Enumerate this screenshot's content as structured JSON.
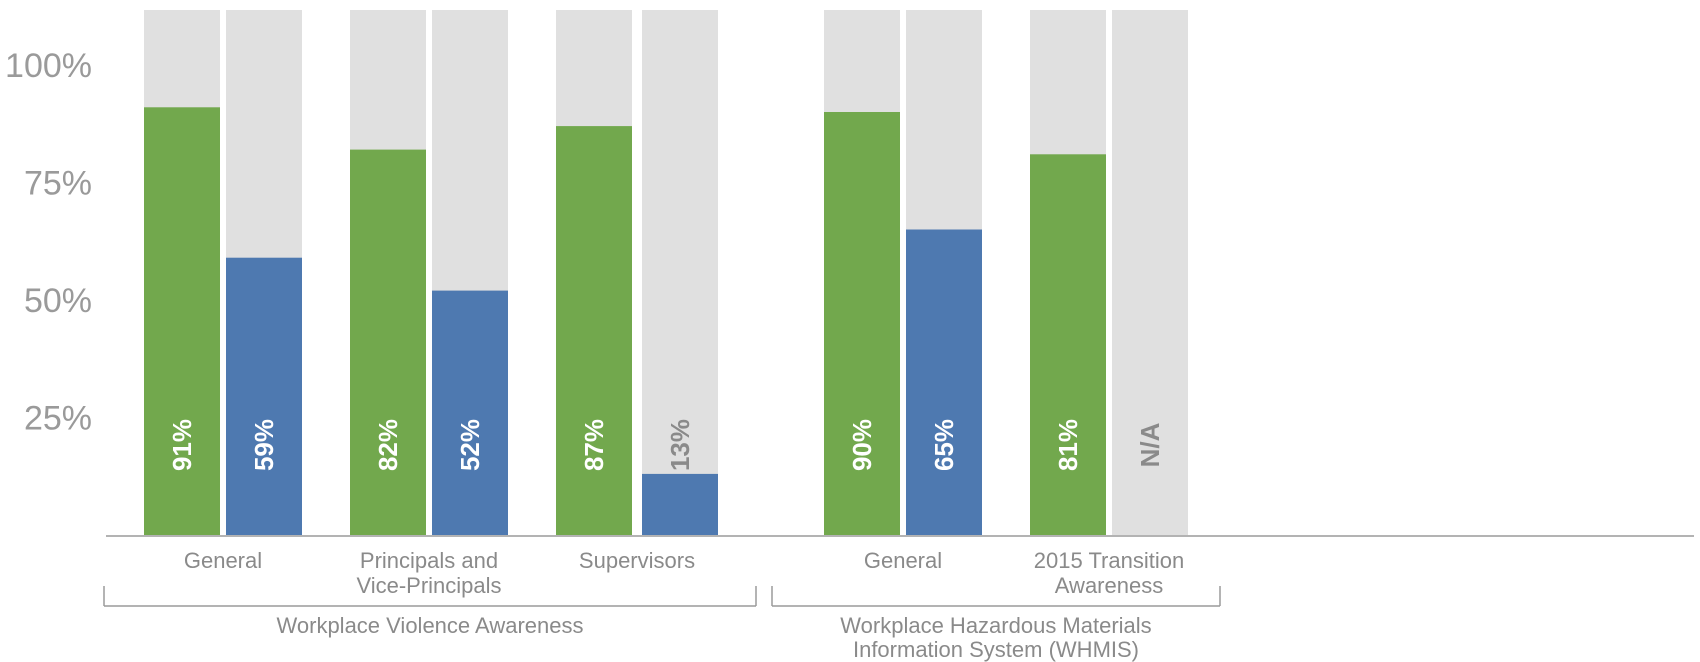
{
  "colors": {
    "series_a": "#72a84d",
    "series_b": "#4e79b0",
    "track": "#e0e0e0",
    "axis": "#9a9a9a",
    "text": "#8a8a8a",
    "label_on_bar": "#ffffff",
    "label_on_track": "#8a8a8a"
  },
  "chart_data": {
    "type": "bar",
    "ylim": [
      0,
      100
    ],
    "yticks": [
      {
        "value": 25,
        "label": "25%"
      },
      {
        "value": 50,
        "label": "50%"
      },
      {
        "value": 75,
        "label": "75%"
      },
      {
        "value": 100,
        "label": "100%"
      }
    ],
    "grid": false,
    "legend": "none",
    "categories": [
      {
        "id": "cat-wva-general",
        "label": [
          "General"
        ],
        "group": 0
      },
      {
        "id": "cat-wva-principals",
        "label": [
          "Principals and",
          "Vice-Principals"
        ],
        "group": 0
      },
      {
        "id": "cat-wva-supervisors",
        "label": [
          "Supervisors"
        ],
        "group": 0
      },
      {
        "id": "cat-whmis-general",
        "label": [
          "General"
        ],
        "group": 1
      },
      {
        "id": "cat-whmis-2015",
        "label": [
          "2015 Transition",
          "Awareness"
        ],
        "group": 1
      }
    ],
    "groups": [
      {
        "label": [
          "Workplace Violence Awareness"
        ]
      },
      {
        "label": [
          "Workplace Hazardous Materials",
          "Information System (WHMIS)"
        ]
      }
    ],
    "series": [
      {
        "color_key": "series_a",
        "values": [
          91,
          82,
          87,
          90,
          81
        ],
        "labels": [
          "91%",
          "82%",
          "87%",
          "90%",
          "81%"
        ]
      },
      {
        "color_key": "series_b",
        "values": [
          59,
          52,
          13,
          65,
          null
        ],
        "labels": [
          "59%",
          "52%",
          "13%",
          "65%",
          "N/A"
        ]
      }
    ]
  }
}
